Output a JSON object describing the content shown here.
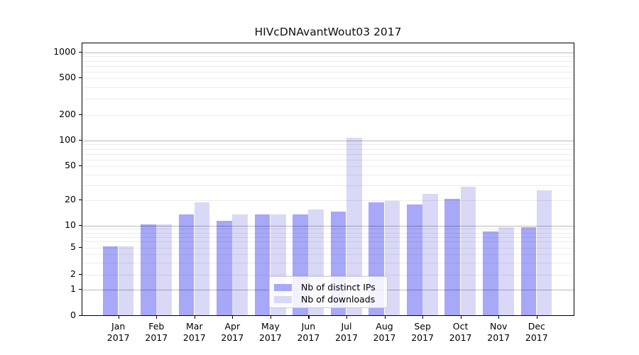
{
  "title": "HIVcDNAvantWout03 2017",
  "chart_data": {
    "type": "bar",
    "title": "HIVcDNAvantWout03 2017",
    "categories": [
      "Jan",
      "Feb",
      "Mar",
      "Apr",
      "May",
      "Jun",
      "Jul",
      "Aug",
      "Sep",
      "Oct",
      "Nov",
      "Dec"
    ],
    "year": "2017",
    "series": [
      {
        "name": "Nb of distinct IPs",
        "color": "#a8a8f8",
        "values": [
          5,
          10,
          13,
          11,
          13,
          13,
          14,
          18,
          17,
          20,
          8,
          9
        ]
      },
      {
        "name": "Nb of downloads",
        "color": "#d9d9f7",
        "values": [
          5,
          10,
          18,
          13,
          13,
          15,
          104,
          19,
          23,
          28,
          9,
          25
        ]
      }
    ],
    "y_axis": {
      "scale": "symlog",
      "ticks": [
        0,
        1,
        2,
        5,
        10,
        20,
        50,
        100,
        200,
        500,
        1000
      ],
      "minor_gridlines": [
        2,
        3,
        4,
        5,
        6,
        7,
        8,
        9,
        20,
        30,
        40,
        50,
        60,
        70,
        80,
        90,
        200,
        300,
        400,
        500,
        600,
        700,
        800,
        900
      ],
      "major_gridlines": [
        1,
        10,
        100,
        1000
      ]
    },
    "legend_position": "lower center",
    "grid": true
  },
  "colors": {
    "bar_dark": "#a8a8f8",
    "bar_light": "#d9d9f7",
    "grid_major": "#b9b9b9",
    "grid_minor": "#ebebeb",
    "axis": "#000000",
    "background": "#ffffff"
  }
}
